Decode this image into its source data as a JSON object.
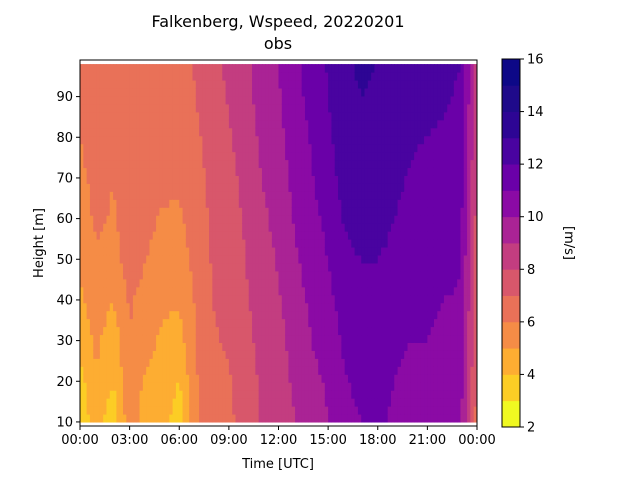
{
  "chart_data": {
    "type": "heatmap",
    "title_line1": "Falkenberg, Wspeed, 20220201",
    "title_line2": "obs",
    "xlabel": "Time [UTC]",
    "ylabel": "Height [m]",
    "colorbar_label": "[m/s]",
    "x_ticks": [
      "00:00",
      "03:00",
      "06:00",
      "09:00",
      "12:00",
      "15:00",
      "18:00",
      "21:00",
      "00:00"
    ],
    "x_range_hours": [
      0,
      24
    ],
    "y_ticks": [
      10,
      20,
      30,
      40,
      50,
      60,
      70,
      80,
      90
    ],
    "ylim": [
      9,
      99
    ],
    "colorbar_ticks": [
      2,
      4,
      6,
      8,
      10,
      12,
      14,
      16
    ],
    "levels": [
      2,
      3,
      4,
      5,
      6,
      7,
      8,
      9,
      10,
      11,
      12,
      13,
      14,
      15,
      16
    ],
    "level_colors": [
      "#f0f921",
      "#fccd25",
      "#fdad32",
      "#f58c46",
      "#e97158",
      "#d8576b",
      "#c33d80",
      "#aa2395",
      "#8b0aa5",
      "#6a00a8",
      "#4903a0",
      "#2d0594",
      "#1f0a8a",
      "#0d0887"
    ],
    "heights_m": [
      10,
      20,
      30,
      40,
      50,
      60,
      70,
      80,
      90,
      98
    ],
    "times_hours": [
      0,
      1,
      2,
      3,
      4,
      5,
      6,
      7,
      8,
      9,
      10,
      11,
      12,
      13,
      14,
      15,
      16,
      17,
      18,
      19,
      20,
      21,
      22,
      23,
      24
    ],
    "wind_speed_ms": [
      [
        3.2,
        4.6,
        3.3,
        5.6,
        4.4,
        4.7,
        3.2,
        5.9,
        6.4,
        6.8,
        7.4,
        8.2,
        8.4,
        9.0,
        9.6,
        10.0,
        10.6,
        11.0,
        11.2,
        10.8,
        10.5,
        10.6,
        10.4,
        10.2,
        6.5
      ],
      [
        3.6,
        4.9,
        4.0,
        5.8,
        4.8,
        4.6,
        4.0,
        5.9,
        6.8,
        6.9,
        7.4,
        8.2,
        8.6,
        9.2,
        9.8,
        10.1,
        10.9,
        11.3,
        11.4,
        11.0,
        10.7,
        10.8,
        10.6,
        10.5,
        6.8
      ],
      [
        4.4,
        5.2,
        4.4,
        6.0,
        5.4,
        4.8,
        4.6,
        6.0,
        6.9,
        7.1,
        7.6,
        8.4,
        8.7,
        9.4,
        10.0,
        10.4,
        11.2,
        11.5,
        11.6,
        11.3,
        11.0,
        11.0,
        10.8,
        10.7,
        7.0
      ],
      [
        4.8,
        5.6,
        5.0,
        6.1,
        5.7,
        5.2,
        5.1,
        6.1,
        7.0,
        7.3,
        7.9,
        8.4,
        8.9,
        9.6,
        10.2,
        10.7,
        11.5,
        11.8,
        11.8,
        11.6,
        11.2,
        11.2,
        11.0,
        10.9,
        7.2
      ],
      [
        5.1,
        5.9,
        5.6,
        6.4,
        6.0,
        5.7,
        5.5,
        6.3,
        7.1,
        7.5,
        8.0,
        8.6,
        9.1,
        9.9,
        10.4,
        11.0,
        11.8,
        12.0,
        12.0,
        11.8,
        11.5,
        11.4,
        11.3,
        11.1,
        7.4
      ],
      [
        5.4,
        6.2,
        5.9,
        6.5,
        6.2,
        5.9,
        5.9,
        6.4,
        7.2,
        7.6,
        8.1,
        8.8,
        9.3,
        10.1,
        10.7,
        11.3,
        12.1,
        12.3,
        12.3,
        12.0,
        11.7,
        11.6,
        11.5,
        11.3,
        7.6
      ],
      [
        5.7,
        6.4,
        6.0,
        6.6,
        6.4,
        6.2,
        6.1,
        6.6,
        7.3,
        7.7,
        8.3,
        9.0,
        9.5,
        10.3,
        10.9,
        11.6,
        12.4,
        12.5,
        12.5,
        12.2,
        11.9,
        11.8,
        11.7,
        11.5,
        7.8
      ],
      [
        6.0,
        6.6,
        6.2,
        6.7,
        6.6,
        6.4,
        6.3,
        6.8,
        7.4,
        7.9,
        8.5,
        9.2,
        9.7,
        10.5,
        11.1,
        11.8,
        12.6,
        12.8,
        12.7,
        12.4,
        12.1,
        12.0,
        11.9,
        11.7,
        8.0
      ],
      [
        6.3,
        6.8,
        6.3,
        6.8,
        6.7,
        6.6,
        6.5,
        7.0,
        7.6,
        8.1,
        8.7,
        9.4,
        9.9,
        10.7,
        11.3,
        12.0,
        12.8,
        13.0,
        12.9,
        12.6,
        12.3,
        12.2,
        12.1,
        11.9,
        8.2
      ],
      [
        6.4,
        6.9,
        6.4,
        6.9,
        6.8,
        6.7,
        6.6,
        7.1,
        7.7,
        8.2,
        8.8,
        9.5,
        10.0,
        10.8,
        11.4,
        12.1,
        12.9,
        13.1,
        13.0,
        12.7,
        12.4,
        12.3,
        12.2,
        12.0,
        8.3
      ]
    ]
  }
}
